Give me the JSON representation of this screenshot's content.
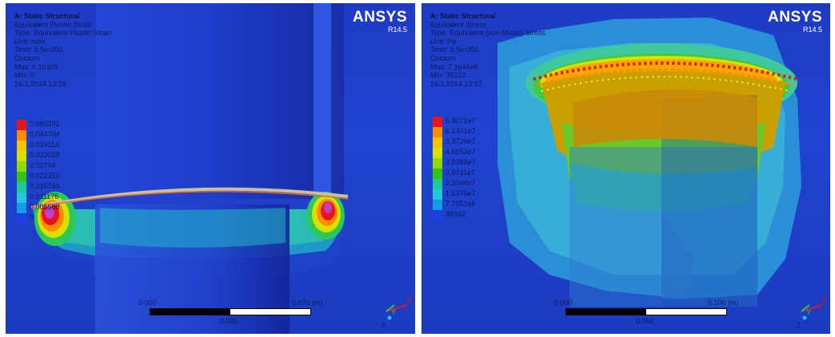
{
  "left_view": {
    "analysis": "A: Static Structural",
    "result": "Equivalent Plastic Strain",
    "type": "Type: Equivalent Plastic Strain",
    "unit": "Unit: m/m",
    "time": "Time: 6.5e-002",
    "mode": "Custom",
    "max": "Max: 0.10405",
    "min": "Min: 0",
    "date": "16.1.2014 13:16",
    "legend": [
      {
        "label": "0.080292",
        "color": "#e8141a"
      },
      {
        "label": "0.044704",
        "color": "#ff8c00"
      },
      {
        "label": "0.039116",
        "color": "#f2c400"
      },
      {
        "label": "0.033528",
        "color": "#d6e200"
      },
      {
        "label": "0.02794",
        "color": "#8fd800"
      },
      {
        "label": "0.022352",
        "color": "#35c21a"
      },
      {
        "label": "0.016764",
        "color": "#20c89a"
      },
      {
        "label": "0.011176",
        "color": "#22c8d8"
      },
      {
        "label": "0.005588",
        "color": "#159be8"
      },
      {
        "label": "0",
        "color": "#1b3fe0"
      }
    ],
    "scale": {
      "start": "0.000",
      "end": "0.070 (m)",
      "mid": "0.035"
    }
  },
  "right_view": {
    "analysis": "A: Static Structural",
    "result": "Equivalent Stress",
    "type": "Type: Equivalent (von-Mises) Stress",
    "unit": "Unit: Pa",
    "time": "Time: 6.5e-002",
    "mode": "Custom",
    "max": "Max: 7.1644e8",
    "min": "Min: 39122",
    "date": "16.1.2014 13:17",
    "legend": [
      {
        "label": "6.9071e7",
        "color": "#e8141a"
      },
      {
        "label": "6.1401e7",
        "color": "#ff8c00"
      },
      {
        "label": "5.3726e7",
        "color": "#f2c400"
      },
      {
        "label": "4.6053e7",
        "color": "#d6e200"
      },
      {
        "label": "3.8388e7",
        "color": "#8fd800"
      },
      {
        "label": "3.0711e7",
        "color": "#35c21a"
      },
      {
        "label": "2.3044e7",
        "color": "#20c89a"
      },
      {
        "label": "1.5376e7",
        "color": "#22c8d8"
      },
      {
        "label": "7.7051e6",
        "color": "#159be8"
      },
      {
        "label": "39342",
        "color": "#1b3fe0"
      }
    ],
    "scale": {
      "start": "0.000",
      "end": "0.100 (m)",
      "mid": "0.050"
    }
  },
  "logo": {
    "brand": "ANSYS",
    "version": "R14.5"
  },
  "triad": {
    "x_label": "X",
    "y_label": "Y",
    "z_label": "Z"
  },
  "colors": {
    "background": "#1f3bc4",
    "red": "#e8141a",
    "orange": "#ff8c00",
    "green": "#35c21a",
    "cyan": "#22c8d8"
  }
}
